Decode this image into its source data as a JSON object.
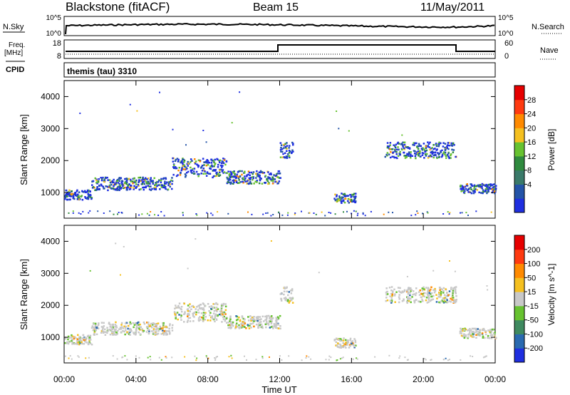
{
  "header": {
    "title": "Blackstone (fitACF)",
    "beam": "Beam 15",
    "date": "11/May/2011"
  },
  "summary_panels": {
    "nsky_label": "N.Sky",
    "nsearch_label": "N.Search",
    "freq_label_line1": "Freq.",
    "freq_label_line2": "[MHz]",
    "nave_label": "Nave",
    "cpid_label": "CPID",
    "cpid_value": "themis (tau) 3310",
    "noise_ticks_left": [
      "10^5",
      "10^0"
    ],
    "noise_ticks_right": [
      "10^5",
      "10^0"
    ],
    "freq_ticks": [
      "18",
      "8"
    ],
    "nave_ticks": [
      "60",
      "0"
    ]
  },
  "chart_data": [
    {
      "type": "heatmap",
      "panel": "power",
      "ylabel": "Slant Range [km]",
      "yticks": [
        "4000",
        "3000",
        "2000",
        "1000"
      ],
      "ylim": [
        200,
        4500
      ],
      "colorbar_label": "Power [dB]",
      "colorbar_ticks": [
        "28",
        "24",
        "20",
        "16",
        "12",
        "8",
        "4"
      ],
      "colors": [
        "#1f2fe0",
        "#2454a8",
        "#3a7a6a",
        "#2f8a3e",
        "#67c230",
        "#f5c020",
        "#ff8a00",
        "#ff3a10",
        "#e60000"
      ],
      "bands": [
        {
          "t0": 0.0,
          "t1": 1.5,
          "r0": 800,
          "r1": 1100,
          "note": "band rising"
        },
        {
          "t0": 1.5,
          "t1": 6.0,
          "r0": 1100,
          "r1": 1500
        },
        {
          "t0": 6.0,
          "t1": 9.0,
          "r0": 1500,
          "r1": 2100
        },
        {
          "t0": 9.0,
          "t1": 12.0,
          "r0": 1300,
          "r1": 1700
        },
        {
          "t0": 12.0,
          "t1": 12.7,
          "r0": 2100,
          "r1": 2600
        },
        {
          "t0": 15.0,
          "t1": 16.2,
          "r0": 700,
          "r1": 1000
        },
        {
          "t0": 17.8,
          "t1": 21.8,
          "r0": 2100,
          "r1": 2600
        },
        {
          "t0": 22.0,
          "t1": 24.0,
          "r0": 1000,
          "r1": 1300
        }
      ]
    },
    {
      "type": "heatmap",
      "panel": "velocity",
      "ylabel": "Slant Range [km]",
      "yticks": [
        "4000",
        "3000",
        "2000",
        "1000"
      ],
      "ylim": [
        200,
        4500
      ],
      "colorbar_label": "Velocity [m s^-1]",
      "colorbar_ticks": [
        "200",
        "100",
        "50",
        "15",
        "-15",
        "-50",
        "-100",
        "-200"
      ],
      "colors": [
        "#1f2fe0",
        "#2a6ab0",
        "#3f8a60",
        "#67c230",
        "#c8c8c8",
        "#f5c020",
        "#ff8a00",
        "#ff3a10",
        "#e60000"
      ],
      "xlabel": "Time UT",
      "xticks": [
        "00:00",
        "04:00",
        "08:00",
        "12:00",
        "16:00",
        "20:00",
        "00:00"
      ],
      "xlim": [
        0,
        24
      ]
    }
  ]
}
